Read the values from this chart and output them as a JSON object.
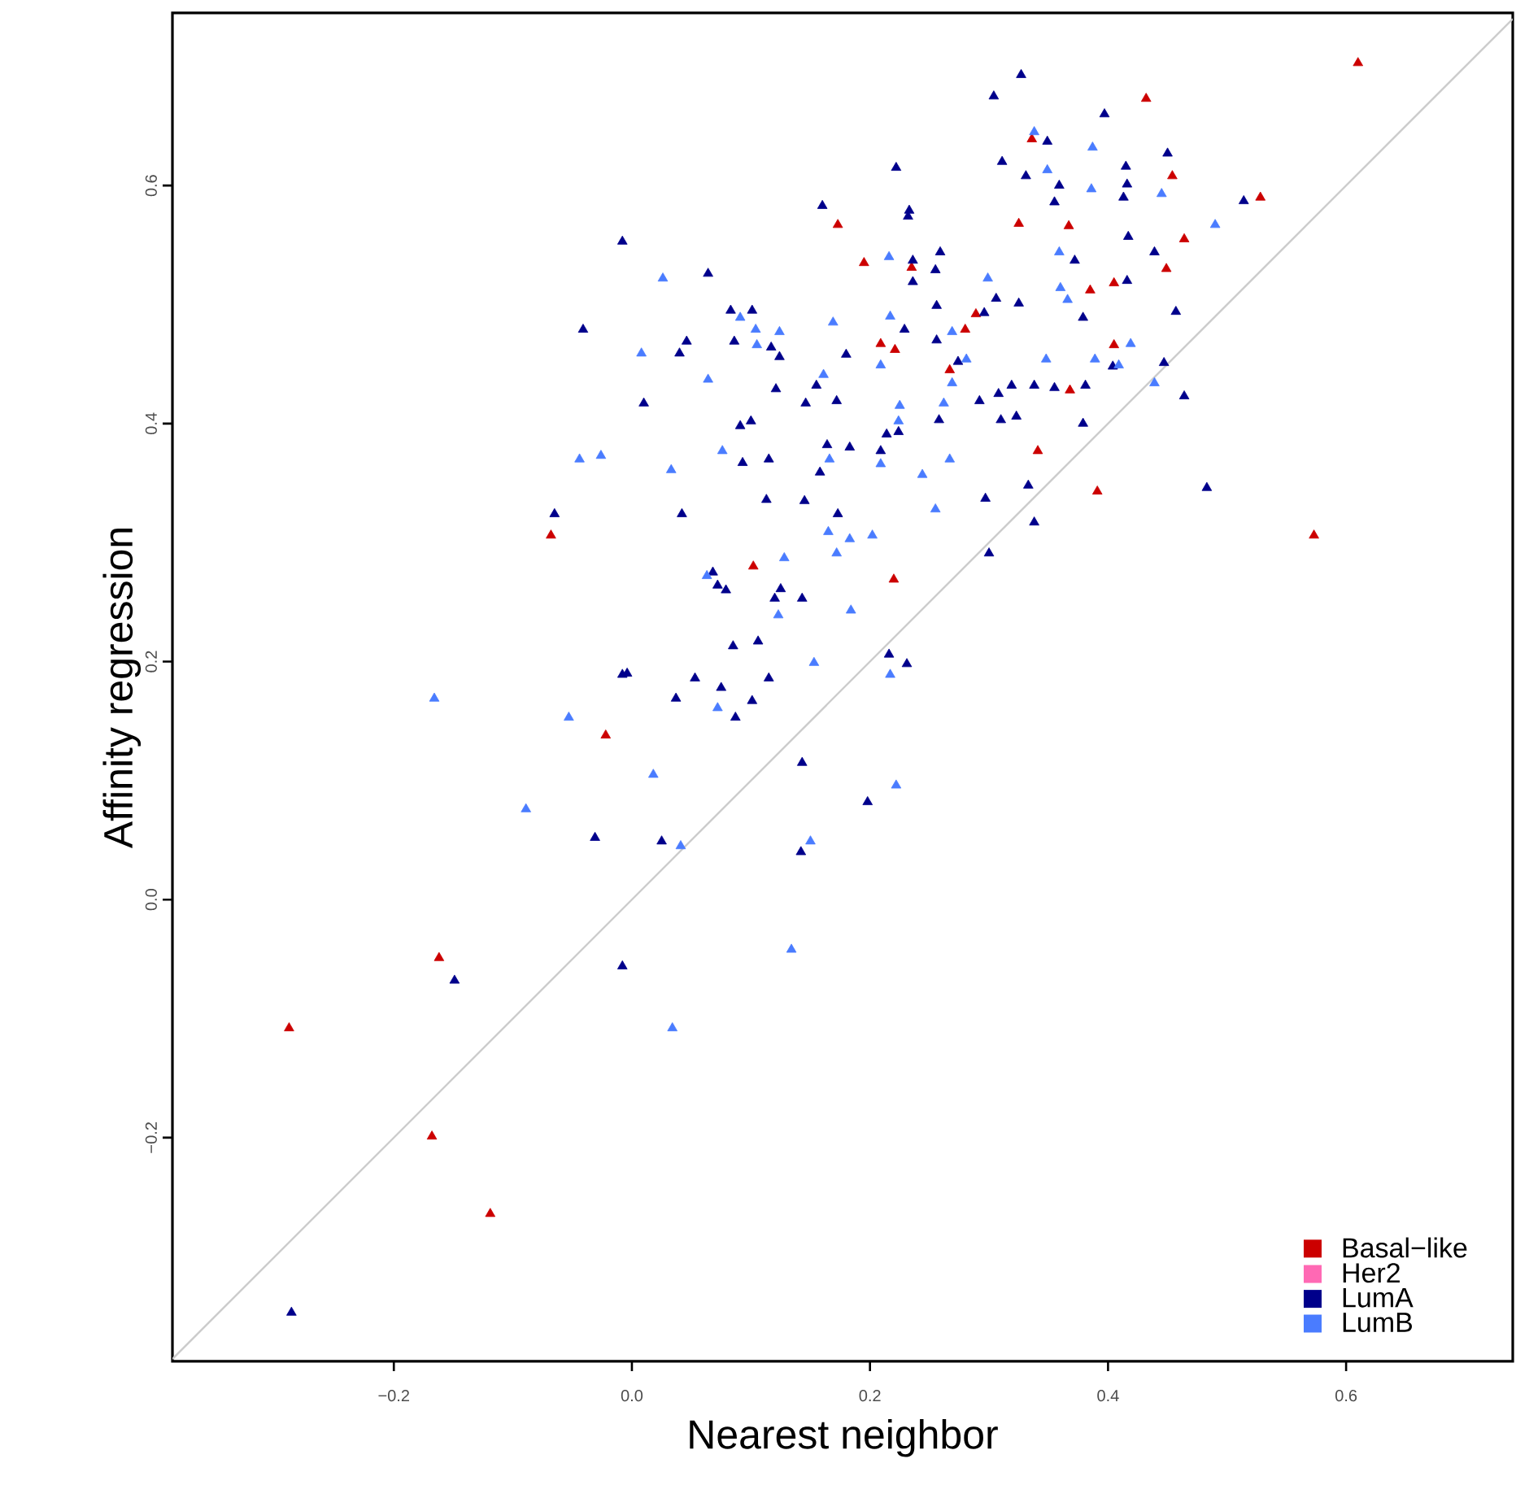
{
  "chart_data": {
    "type": "scatter",
    "xlabel": "Nearest neighbor",
    "ylabel": "Affinity regression",
    "xlim": [
      -0.386,
      0.74
    ],
    "ylim": [
      -0.388,
      0.745
    ],
    "xticks": [
      {
        "value": -0.2,
        "label": "−0.2"
      },
      {
        "value": 0,
        "label": "0.0"
      },
      0.2,
      0.4,
      0.6
    ],
    "yticks": [
      {
        "value": -0.2,
        "label": "−0.2"
      },
      {
        "value": 0,
        "label": "0.0"
      },
      0.2,
      0.4,
      0.6
    ],
    "marker": "triangle",
    "legend": "bottom right",
    "series": [
      {
        "name": "Basal−like",
        "color": "#cc0000",
        "x": [
          -0.068,
          0.173,
          0.325,
          0.367,
          0.195,
          0.235,
          0.289,
          0.28,
          0.209,
          0.221,
          0.267,
          0.368,
          0.341,
          0.102,
          0.22,
          -0.022,
          -0.162,
          -0.288,
          -0.168,
          -0.119,
          0.61,
          0.432,
          0.454,
          0.528,
          0.464,
          0.449,
          0.385,
          0.405,
          0.405,
          0.391,
          0.573,
          0.336
        ],
        "values": [
          0.306,
          0.567,
          0.568,
          0.566,
          0.535,
          0.531,
          0.492,
          0.479,
          0.467,
          0.462,
          0.445,
          0.428,
          0.377,
          0.28,
          0.269,
          0.138,
          -0.049,
          -0.108,
          -0.199,
          -0.264,
          0.703,
          0.673,
          0.608,
          0.59,
          0.555,
          0.53,
          0.512,
          0.518,
          0.466,
          0.343,
          0.306,
          0.639
        ]
      },
      {
        "name": "Her2",
        "color": "#ff69b4"
      },
      {
        "name": "LumA",
        "color": "#00008b",
        "x": [
          -0.008,
          -0.041,
          -0.065,
          -0.008,
          0.327,
          0.304,
          0.349,
          0.311,
          0.222,
          0.331,
          0.359,
          0.355,
          0.16,
          0.233,
          0.232,
          0.236,
          0.259,
          0.255,
          0.236,
          0.064,
          0.306,
          0.325,
          0.256,
          0.296,
          0.083,
          0.101,
          0.229,
          0.086,
          0.046,
          0.04,
          0.117,
          0.124,
          0.18,
          0.256,
          0.274,
          0.155,
          0.121,
          0.146,
          0.172,
          0.01,
          0.292,
          0.308,
          0.319,
          0.338,
          0.355,
          0.31,
          0.323,
          0.258,
          0.224,
          0.214,
          0.1,
          0.091,
          0.164,
          0.183,
          0.209,
          0.093,
          0.115,
          0.158,
          0.333,
          0.042,
          0.113,
          0.145,
          0.173,
          0.297,
          0.338,
          0.3,
          0.068,
          0.072,
          0.079,
          0.125,
          0.12,
          0.143,
          0.085,
          0.106,
          0.216,
          0.231,
          0.053,
          0.115,
          0.075,
          0.037,
          0.101,
          0.087,
          0.143,
          0.198,
          0.025,
          0.142,
          -0.008,
          -0.031,
          -0.149,
          -0.286,
          0.397,
          0.45,
          0.415,
          0.416,
          0.413,
          0.514,
          0.417,
          0.372,
          0.439,
          0.416,
          0.379,
          0.457,
          0.404,
          0.447,
          0.381,
          0.464,
          0.379,
          0.483,
          -0.004
        ],
        "values": [
          0.553,
          0.479,
          0.324,
          0.189,
          0.693,
          0.675,
          0.637,
          0.62,
          0.615,
          0.608,
          0.6,
          0.586,
          0.583,
          0.579,
          0.574,
          0.537,
          0.544,
          0.529,
          0.519,
          0.526,
          0.505,
          0.501,
          0.499,
          0.493,
          0.495,
          0.495,
          0.479,
          0.469,
          0.469,
          0.459,
          0.464,
          0.456,
          0.458,
          0.47,
          0.452,
          0.432,
          0.429,
          0.417,
          0.419,
          0.417,
          0.419,
          0.425,
          0.432,
          0.432,
          0.43,
          0.403,
          0.406,
          0.403,
          0.393,
          0.391,
          0.402,
          0.398,
          0.382,
          0.38,
          0.377,
          0.367,
          0.37,
          0.359,
          0.348,
          0.324,
          0.336,
          0.335,
          0.324,
          0.337,
          0.317,
          0.291,
          0.275,
          0.264,
          0.26,
          0.261,
          0.253,
          0.253,
          0.213,
          0.217,
          0.206,
          0.198,
          0.186,
          0.186,
          0.178,
          0.169,
          0.167,
          0.153,
          0.115,
          0.082,
          0.049,
          0.04,
          -0.056,
          0.052,
          -0.068,
          -0.347,
          0.66,
          0.627,
          0.616,
          0.601,
          0.59,
          0.587,
          0.557,
          0.537,
          0.544,
          0.52,
          0.489,
          0.494,
          0.448,
          0.451,
          0.432,
          0.423,
          0.4,
          0.346,
          0.19
        ]
      },
      {
        "name": "LumB",
        "color": "#4a7cff",
        "x": [
          -0.044,
          -0.026,
          0.338,
          0.349,
          0.216,
          0.026,
          0.299,
          0.091,
          0.217,
          0.169,
          0.269,
          0.104,
          0.124,
          0.008,
          0.105,
          0.209,
          0.281,
          0.348,
          0.064,
          0.269,
          0.161,
          0.225,
          0.262,
          0.224,
          0.166,
          0.209,
          0.076,
          0.033,
          0.244,
          0.267,
          0.255,
          0.165,
          0.183,
          0.202,
          0.172,
          0.128,
          0.063,
          0.123,
          0.184,
          0.153,
          0.217,
          0.072,
          0.018,
          0.222,
          0.041,
          0.15,
          0.134,
          0.034,
          -0.166,
          -0.053,
          -0.089,
          0.387,
          0.386,
          0.445,
          0.49,
          0.359,
          0.36,
          0.366,
          0.419,
          0.389,
          0.409,
          0.439
        ],
        "values": [
          0.37,
          0.373,
          0.645,
          0.613,
          0.54,
          0.522,
          0.522,
          0.489,
          0.49,
          0.485,
          0.477,
          0.479,
          0.477,
          0.459,
          0.466,
          0.449,
          0.454,
          0.454,
          0.437,
          0.434,
          0.441,
          0.415,
          0.417,
          0.402,
          0.37,
          0.366,
          0.377,
          0.361,
          0.357,
          0.37,
          0.328,
          0.309,
          0.303,
          0.306,
          0.291,
          0.287,
          0.272,
          0.239,
          0.243,
          0.199,
          0.189,
          0.161,
          0.105,
          0.096,
          0.045,
          0.049,
          -0.042,
          -0.108,
          0.169,
          0.153,
          0.076,
          0.632,
          0.597,
          0.593,
          0.567,
          0.544,
          0.514,
          0.504,
          0.467,
          0.454,
          0.449,
          0.434
        ]
      },
      {
        "type": "line",
        "marker": "none",
        "color": "#cccccc",
        "x": [
          -0.386,
          0.74
        ],
        "values": [
          -0.386,
          0.74
        ]
      }
    ]
  }
}
